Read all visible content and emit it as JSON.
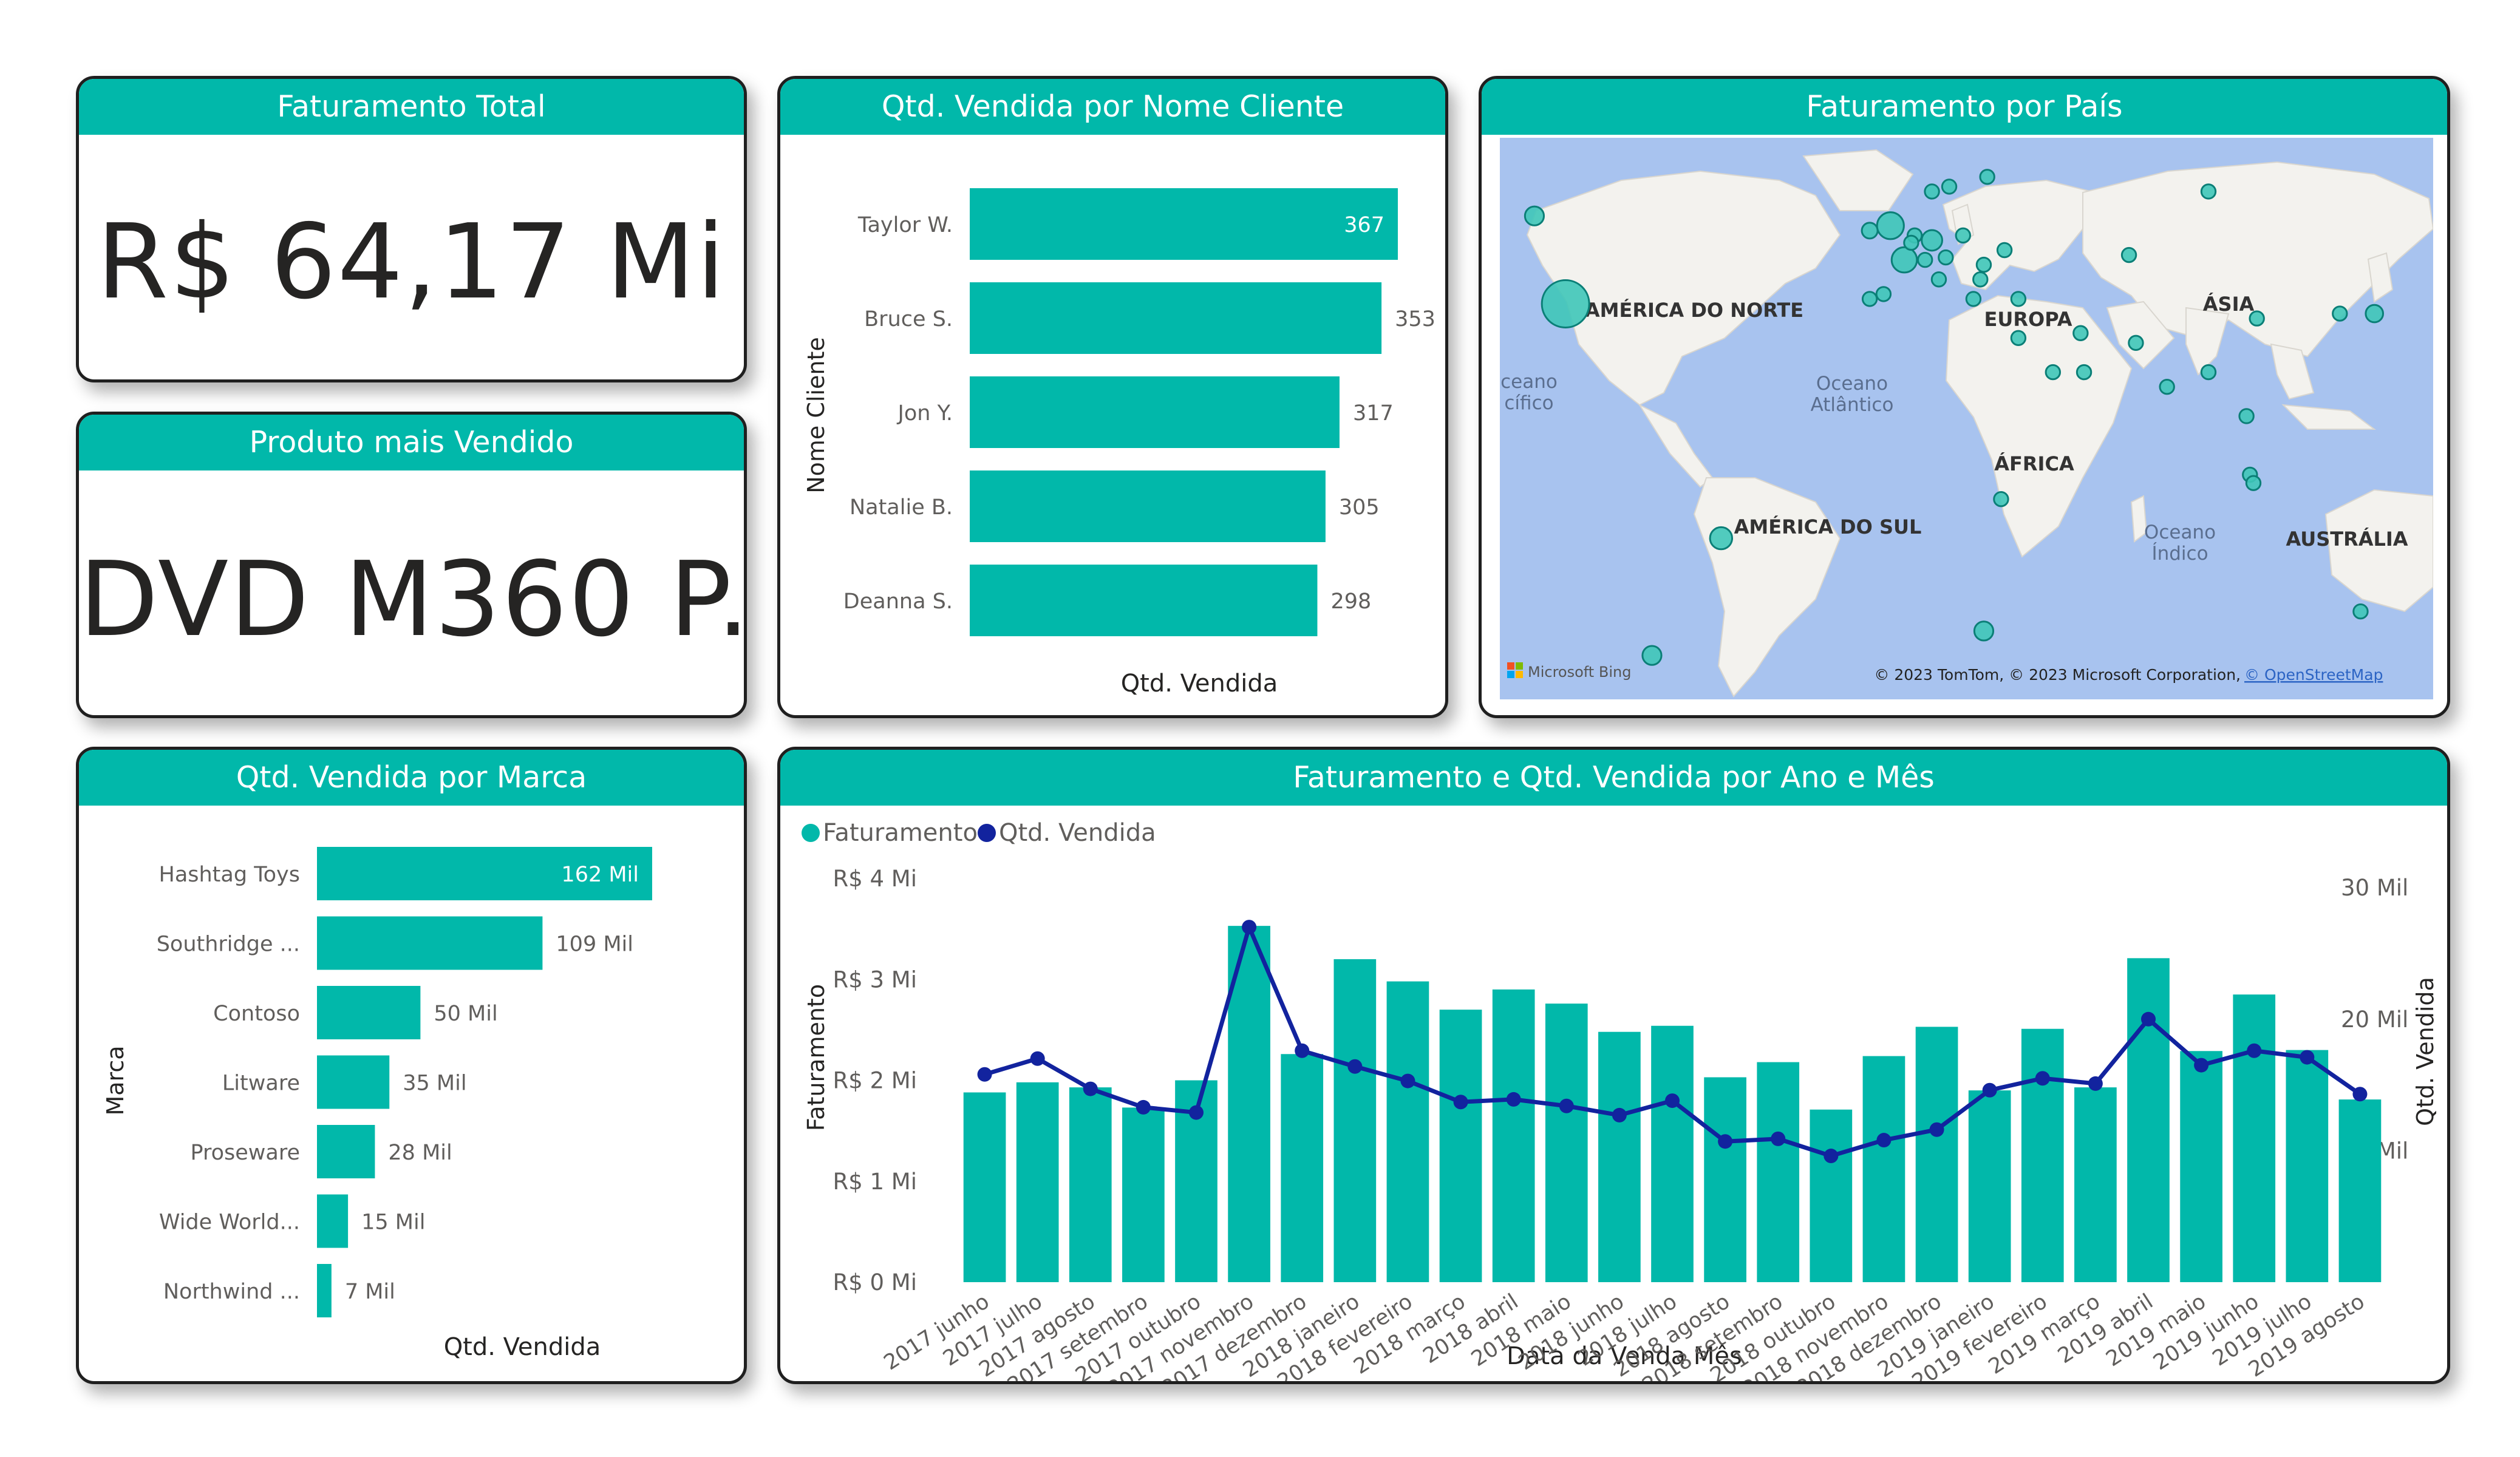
{
  "colors": {
    "accent": "#01b8aa",
    "line": "#12239e",
    "text": "#252423",
    "axis": "#605e5c"
  },
  "kpi_total": {
    "title": "Faturamento Total",
    "value": "R$ 64,17 Mi"
  },
  "kpi_product": {
    "title": "Produto mais Vendido",
    "value": "DVD M360 P..."
  },
  "customers": {
    "title": "Qtd. Vendida por Nome Cliente",
    "y_axis_title": "Nome Cliente",
    "x_axis_title": "Qtd. Vendida"
  },
  "map": {
    "title": "Faturamento por País",
    "labels": {
      "north_america": "AMÉRICA DO NORTE",
      "europe": "EUROPA",
      "asia": "ÁSIA",
      "africa": "ÁFRICA",
      "south_america": "AMÉRICA DO SUL",
      "australia": "AUSTRÁLIA",
      "atlantic_1": "Oceano",
      "atlantic_2": "Atlântico",
      "indian_1": "Oceano",
      "indian_2": "Índico",
      "pacific_1": "ceano",
      "pacific_2": "cífico"
    },
    "bing": "Microsoft Bing",
    "attribution": "© 2023 TomTom, © 2023 Microsoft Corporation,",
    "attribution_link": "© OpenStreetMap"
  },
  "brands": {
    "title": "Qtd. Vendida por Marca",
    "y_axis_title": "Marca",
    "x_axis_title": "Qtd. Vendida"
  },
  "combo": {
    "title": "Faturamento e Qtd. Vendida por Ano e Mês",
    "legend": [
      "Faturamento",
      "Qtd. Vendida"
    ],
    "y_left_title": "Faturamento",
    "y_right_title": "Qtd. Vendida",
    "x_title": "Data da Venda Mês"
  },
  "chart_data": [
    {
      "type": "bar",
      "orientation": "horizontal",
      "title": "Qtd. Vendida por Nome Cliente",
      "xlabel": "Qtd. Vendida",
      "ylabel": "Nome Cliente",
      "categories": [
        "Taylor W.",
        "Bruce S.",
        "Jon Y.",
        "Natalie B.",
        "Deanna S."
      ],
      "values": [
        367,
        353,
        317,
        305,
        298
      ],
      "data_labels": [
        "367",
        "353",
        "317",
        "305",
        "298"
      ]
    },
    {
      "type": "bar",
      "orientation": "horizontal",
      "title": "Qtd. Vendida por Marca",
      "xlabel": "Qtd. Vendida",
      "ylabel": "Marca",
      "categories": [
        "Hashtag Toys",
        "Southridge ...",
        "Contoso",
        "Litware",
        "Proseware",
        "Wide World...",
        "Northwind ..."
      ],
      "values": [
        162000,
        109000,
        50000,
        35000,
        28000,
        15000,
        7000
      ],
      "data_labels": [
        "162 Mil",
        "109 Mil",
        "50 Mil",
        "35 Mil",
        "28 Mil",
        "15 Mil",
        "7 Mil"
      ]
    },
    {
      "type": "bar",
      "title": "Faturamento e Qtd. Vendida por Ano e Mês",
      "xlabel": "Data da Venda Mês",
      "categories": [
        "2017 junho",
        "2017 julho",
        "2017 agosto",
        "2017 setembro",
        "2017 outubro",
        "2017 novembro",
        "2017 dezembro",
        "2018 janeiro",
        "2018 fevereiro",
        "2018 março",
        "2018 abril",
        "2018 maio",
        "2018 junho",
        "2018 julho",
        "2018 agosto",
        "2018 setembro",
        "2018 outubro",
        "2018 novembro",
        "2018 dezembro",
        "2019 janeiro",
        "2019 fevereiro",
        "2019 março",
        "2019 abril",
        "2019 maio",
        "2019 junho",
        "2019 julho",
        "2019 agosto"
      ],
      "series": [
        {
          "name": "Faturamento",
          "type": "bar",
          "axis": "left",
          "unit": "R$ Mi",
          "values": [
            1.88,
            1.98,
            1.93,
            1.73,
            2.0,
            3.53,
            2.26,
            3.2,
            2.98,
            2.7,
            2.9,
            2.76,
            2.48,
            2.54,
            2.03,
            2.18,
            1.71,
            2.24,
            2.53,
            1.9,
            2.51,
            1.93,
            3.21,
            2.29,
            2.85,
            2.3,
            1.81
          ]
        },
        {
          "name": "Qtd. Vendida",
          "type": "line",
          "axis": "right",
          "unit": "Mil",
          "values": [
            15.8,
            17.0,
            14.7,
            13.3,
            12.9,
            27.0,
            17.6,
            16.4,
            15.3,
            13.7,
            13.9,
            13.4,
            12.7,
            13.8,
            10.7,
            10.9,
            9.6,
            10.8,
            11.6,
            14.6,
            15.5,
            15.1,
            20.0,
            16.5,
            17.6,
            17.1,
            14.3
          ]
        }
      ],
      "y_left": {
        "ticks": [
          "R$ 0 Mi",
          "R$ 1 Mi",
          "R$ 2 Mi",
          "R$ 3 Mi",
          "R$ 4 Mi"
        ],
        "ylim": [
          0,
          4
        ]
      },
      "y_right": {
        "ticks": [
          "10 Mil",
          "20 Mil",
          "30 Mil"
        ],
        "ylim": [
          0,
          30.7
        ]
      },
      "legend": "top-left"
    },
    {
      "type": "scatter",
      "subtype": "bubble-map",
      "title": "Faturamento por País",
      "points": [
        {
          "lon": -96,
          "lat": 38,
          "size": 3.0
        },
        {
          "lon": -105,
          "lat": 56,
          "size": 1.2
        },
        {
          "lon": -51,
          "lat": -10,
          "size": 1.4
        },
        {
          "lon": -71,
          "lat": -34,
          "size": 1.2
        },
        {
          "lon": 25,
          "lat": -29,
          "size": 1.2
        },
        {
          "lon": 134,
          "lat": -25,
          "size": 0.9
        },
        {
          "lon": -8,
          "lat": 53,
          "size": 1.0
        },
        {
          "lon": -2,
          "lat": 54,
          "size": 1.7
        },
        {
          "lon": 2,
          "lat": 47,
          "size": 1.6
        },
        {
          "lon": 10,
          "lat": 51,
          "size": 1.3
        },
        {
          "lon": 5,
          "lat": 52,
          "size": 0.9
        },
        {
          "lon": -4,
          "lat": 40,
          "size": 0.9
        },
        {
          "lon": -8,
          "lat": 39,
          "size": 0.9
        },
        {
          "lon": 12,
          "lat": 43,
          "size": 0.9
        },
        {
          "lon": 8,
          "lat": 47,
          "size": 0.9
        },
        {
          "lon": 14,
          "lat": 47.5,
          "size": 0.9
        },
        {
          "lon": 19,
          "lat": 52,
          "size": 0.9
        },
        {
          "lon": 15,
          "lat": 62,
          "size": 0.9
        },
        {
          "lon": 10,
          "lat": 61,
          "size": 0.9
        },
        {
          "lon": 26,
          "lat": 64,
          "size": 0.9
        },
        {
          "lon": 22,
          "lat": 39,
          "size": 0.9
        },
        {
          "lon": 35,
          "lat": 39,
          "size": 0.9
        },
        {
          "lon": 31,
          "lat": 49,
          "size": 0.9
        },
        {
          "lon": 25,
          "lat": 46,
          "size": 0.9
        },
        {
          "lon": 90,
          "lat": 61,
          "size": 0.9
        },
        {
          "lon": 35,
          "lat": 31,
          "size": 0.9
        },
        {
          "lon": 45,
          "lat": 24,
          "size": 0.9
        },
        {
          "lon": 54,
          "lat": 24,
          "size": 0.9
        },
        {
          "lon": 53,
          "lat": 32,
          "size": 0.9
        },
        {
          "lon": 67,
          "lat": 48,
          "size": 0.9
        },
        {
          "lon": 69,
          "lat": 30,
          "size": 0.9
        },
        {
          "lon": 78,
          "lat": 21,
          "size": 0.9
        },
        {
          "lon": 90,
          "lat": 24,
          "size": 0.9
        },
        {
          "lon": 104,
          "lat": 35,
          "size": 0.9
        },
        {
          "lon": 101,
          "lat": 15,
          "size": 0.9
        },
        {
          "lon": 102,
          "lat": 3,
          "size": 0.9
        },
        {
          "lon": 103,
          "lat": 1.3,
          "size": 0.9
        },
        {
          "lon": 128,
          "lat": 36,
          "size": 0.9
        },
        {
          "lon": 138,
          "lat": 36,
          "size": 1.1
        },
        {
          "lon": 30,
          "lat": -2,
          "size": 0.9
        },
        {
          "lon": 24,
          "lat": 43,
          "size": 0.9
        },
        {
          "lon": 4,
          "lat": 50.5,
          "size": 0.9
        }
      ]
    }
  ]
}
